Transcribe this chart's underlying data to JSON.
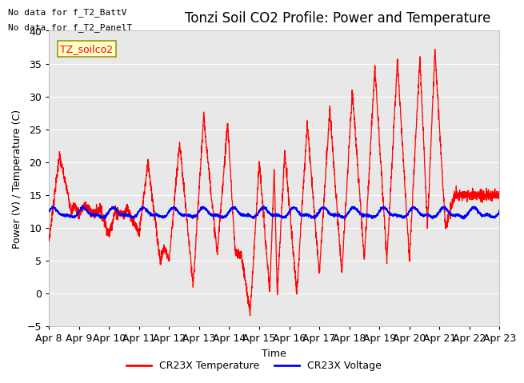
{
  "title": "Tonzi Soil CO2 Profile: Power and Temperature",
  "xlabel": "Time",
  "ylabel": "Power (V) / Temperature (C)",
  "ylim": [
    -5,
    40
  ],
  "yticks": [
    -5,
    0,
    5,
    10,
    15,
    20,
    25,
    30,
    35,
    40
  ],
  "no_data_texts": [
    "No data for f_T2_BattV",
    "No data for f_T2_PanelT"
  ],
  "legend_label": "TZ_soilco2",
  "legend_entries": [
    "CR23X Temperature",
    "CR23X Voltage"
  ],
  "legend_colors": [
    "#ff0000",
    "#0000ff"
  ],
  "temp_color": "#ff0000",
  "volt_color": "#0000ff",
  "bg_color": "#ffffff",
  "plot_bg_color": "#e8e8e8",
  "grid_color": "#ffffff",
  "date_labels": [
    "Apr 8",
    "Apr 9",
    "Apr 10",
    "Apr 11",
    "Apr 12",
    "Apr 13",
    "Apr 14",
    "Apr 15",
    "Apr 16",
    "Apr 17",
    "Apr 18",
    "Apr 19",
    "Apr 20",
    "Apr 21",
    "Apr 22",
    "Apr 23"
  ],
  "title_fontsize": 12,
  "label_fontsize": 9,
  "tick_fontsize": 9
}
